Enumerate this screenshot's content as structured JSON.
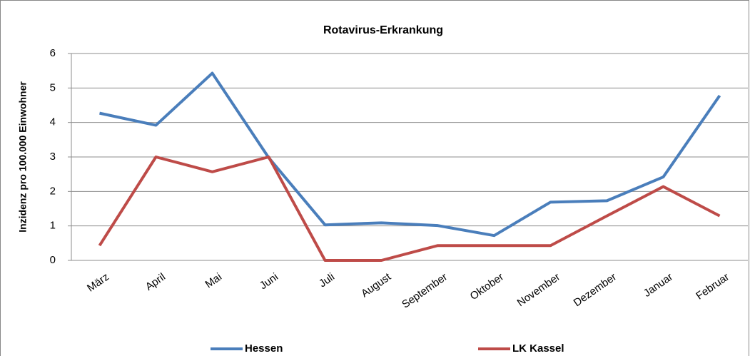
{
  "chart_data": {
    "type": "line",
    "title": "Rotavirus-Erkrankung",
    "y_label": "Inzidenz pro 100.000 Einwohner",
    "categories": [
      "März",
      "April",
      "Mai",
      "Juni",
      "Juli",
      "August",
      "September",
      "Oktober",
      "November",
      "Dezember",
      "Januar",
      "Februar"
    ],
    "series": [
      {
        "name": "Hessen",
        "color": "#4a7ebb",
        "values": [
          4.27,
          3.92,
          5.43,
          2.98,
          1.03,
          1.09,
          1.01,
          0.72,
          1.69,
          1.73,
          2.42,
          4.78
        ]
      },
      {
        "name": "LK Kassel",
        "color": "#be4b48",
        "values": [
          0.43,
          3.0,
          2.57,
          3.0,
          0,
          0,
          0.43,
          0.43,
          0.43,
          1.29,
          2.14,
          1.29
        ]
      }
    ],
    "ylim": [
      0,
      6
    ],
    "yticks": [
      0,
      1,
      2,
      3,
      4,
      5,
      6
    ],
    "grid": true,
    "legend": "bottom"
  }
}
